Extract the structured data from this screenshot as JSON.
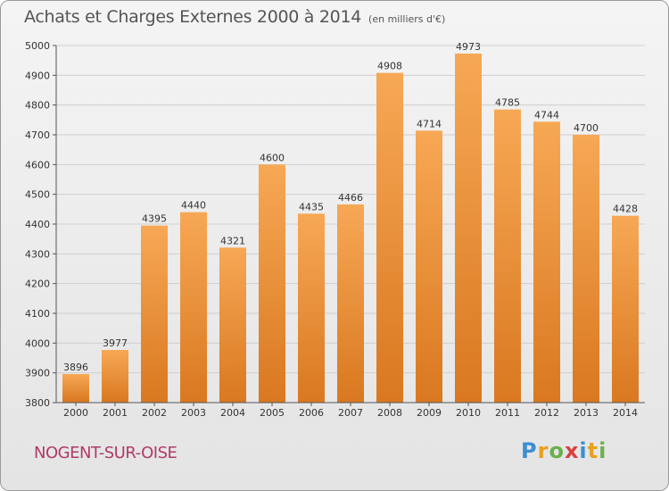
{
  "header": {
    "title": "Achats et Charges Externes 2000 à 2014",
    "unit_note": "(en milliers d'€)"
  },
  "footer": {
    "commune": "NOGENT-SUR-OISE",
    "logo_text": "Proxiti",
    "logo_colors": [
      "#3a8fd0",
      "#e8a020",
      "#6ab04c",
      "#d94040",
      "#3a8fd0",
      "#e8a020",
      "#6ab04c"
    ]
  },
  "colors": {
    "bar_light": "#f7a855",
    "bar_dark": "#d97820",
    "grid": "#cfcfcf",
    "axis_text": "#333333",
    "commune_text": "#b03a6a"
  },
  "chart_data": {
    "type": "bar",
    "title": "Achats et Charges Externes 2000 à 2014",
    "subtitle": "(en milliers d'€)",
    "categories": [
      "2000",
      "2001",
      "2002",
      "2003",
      "2004",
      "2005",
      "2006",
      "2007",
      "2008",
      "2009",
      "2010",
      "2011",
      "2012",
      "2013",
      "2014"
    ],
    "values": [
      3896,
      3977,
      4395,
      4440,
      4321,
      4600,
      4435,
      4466,
      4908,
      4714,
      4973,
      4785,
      4744,
      4700,
      4428
    ],
    "ylim": [
      3800,
      5000
    ],
    "yticks": [
      3800,
      3900,
      4000,
      4100,
      4200,
      4300,
      4400,
      4500,
      4600,
      4700,
      4800,
      4900,
      5000
    ],
    "grid": true,
    "data_labels": true
  }
}
